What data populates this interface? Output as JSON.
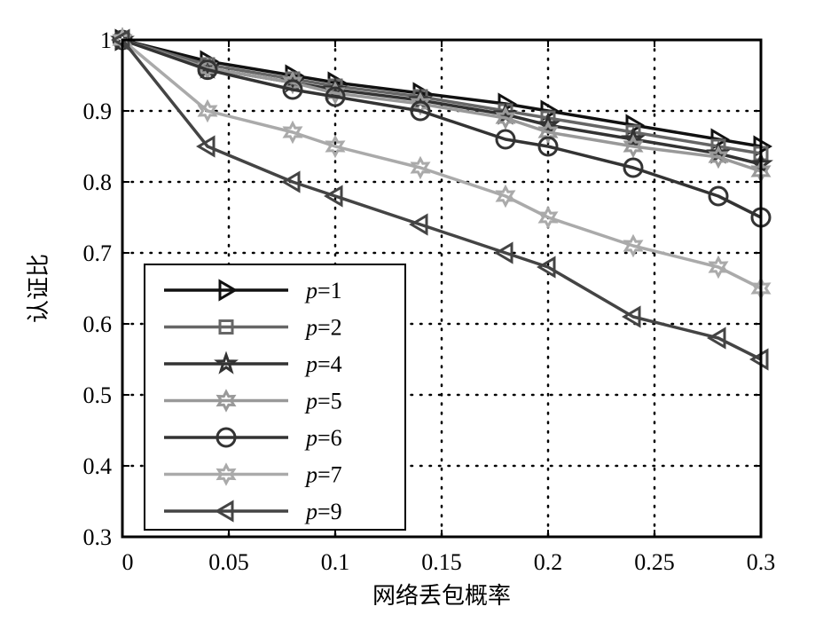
{
  "chart_data": {
    "type": "line",
    "title": "",
    "xlabel": "网络丢包概率",
    "ylabel": "认证比",
    "xlim": [
      0,
      0.3
    ],
    "ylim": [
      0.3,
      1
    ],
    "grid": true,
    "legend_position": "bottom-left",
    "xticks": [
      "0",
      "0.05",
      "0.1",
      "0.15",
      "0.2",
      "0.25",
      "0.3"
    ],
    "xtick_values": [
      0,
      0.05,
      0.1,
      0.15,
      0.2,
      0.25,
      0.3
    ],
    "yticks": [
      "0.3",
      "0.4",
      "0.5",
      "0.6",
      "0.7",
      "0.8",
      "0.9",
      "1"
    ],
    "ytick_values": [
      0.3,
      0.4,
      0.5,
      0.6,
      0.7,
      0.8,
      0.9,
      1
    ],
    "x": [
      0,
      0.04,
      0.08,
      0.1,
      0.14,
      0.18,
      0.2,
      0.24,
      0.28,
      0.3
    ],
    "series": [
      {
        "name": "p=1",
        "var": "p",
        "eq": "=1",
        "marker": "triangle-right",
        "color": "#111111",
        "values": [
          1,
          0.97,
          0.95,
          0.94,
          0.925,
          0.91,
          0.9,
          0.88,
          0.86,
          0.85
        ]
      },
      {
        "name": "p=2",
        "var": "p",
        "eq": "=2",
        "marker": "square",
        "color": "#666666",
        "values": [
          1,
          0.965,
          0.945,
          0.935,
          0.92,
          0.9,
          0.89,
          0.87,
          0.85,
          0.84
        ]
      },
      {
        "name": "p=4",
        "var": "p",
        "eq": "=4",
        "marker": "pentagram",
        "color": "#333333",
        "values": [
          1,
          0.96,
          0.94,
          0.93,
          0.915,
          0.895,
          0.88,
          0.86,
          0.84,
          0.825
        ]
      },
      {
        "name": "p=5",
        "var": "p",
        "eq": "=5",
        "marker": "hexagram",
        "color": "#999999",
        "values": [
          1,
          0.96,
          0.94,
          0.925,
          0.91,
          0.89,
          0.87,
          0.85,
          0.835,
          0.815
        ]
      },
      {
        "name": "p=6",
        "var": "p",
        "eq": "=6",
        "marker": "circle",
        "color": "#333333",
        "values": [
          1,
          0.958,
          0.93,
          0.92,
          0.9,
          0.86,
          0.85,
          0.82,
          0.78,
          0.75
        ]
      },
      {
        "name": "p=7",
        "var": "p",
        "eq": "=7",
        "marker": "hexagram",
        "color": "#aaaaaa",
        "values": [
          1,
          0.9,
          0.87,
          0.85,
          0.82,
          0.78,
          0.75,
          0.71,
          0.68,
          0.65
        ]
      },
      {
        "name": "p=9",
        "var": "p",
        "eq": "=9",
        "marker": "triangle-left",
        "color": "#444444",
        "values": [
          1,
          0.85,
          0.8,
          0.78,
          0.74,
          0.7,
          0.68,
          0.61,
          0.58,
          0.55
        ]
      }
    ]
  }
}
